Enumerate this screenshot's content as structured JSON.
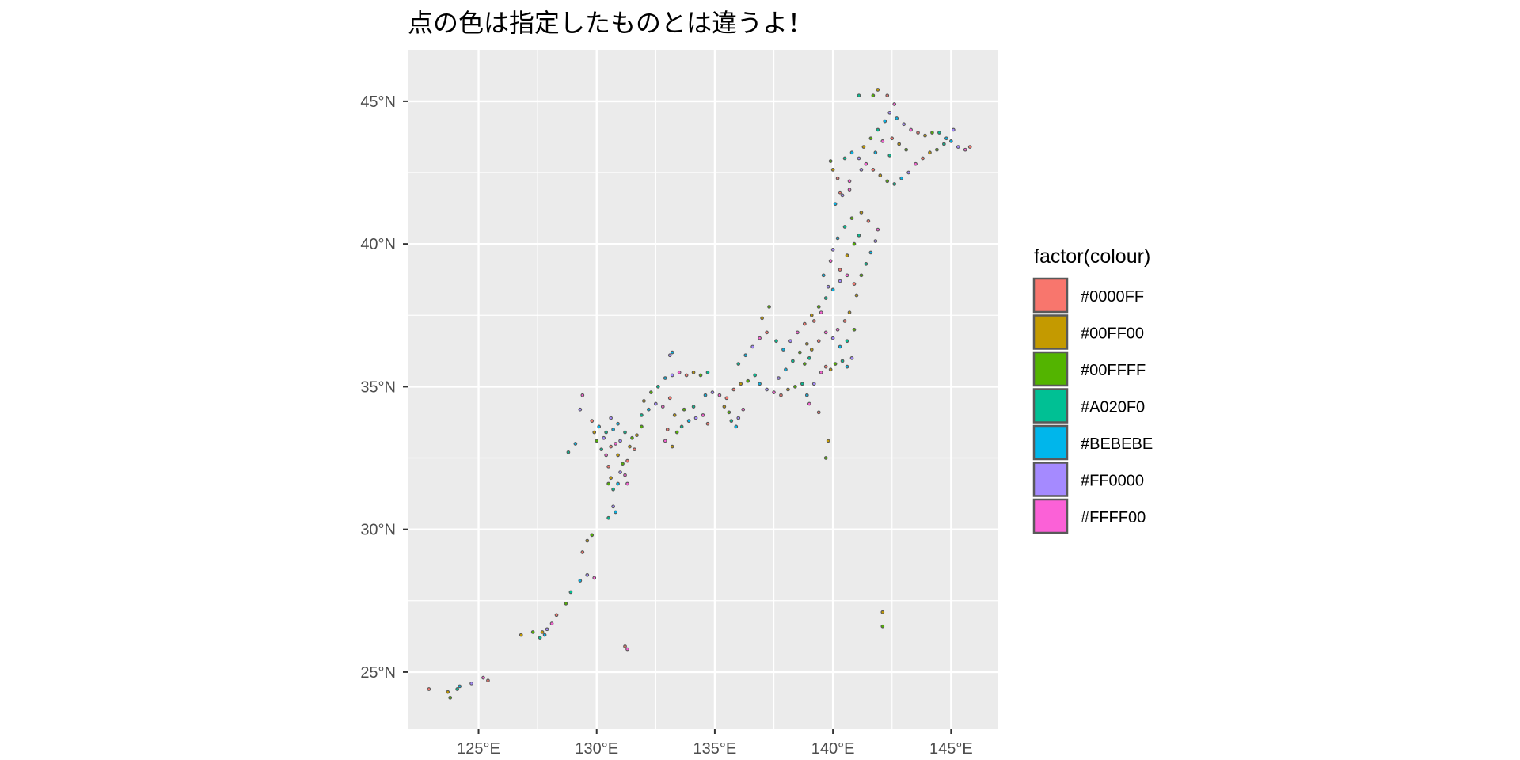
{
  "chart_data": {
    "type": "scatter",
    "title": "点の色は指定したものとは違うよ！",
    "xlabel": "",
    "ylabel": "",
    "xlim": [
      122.0,
      147.0
    ],
    "ylim": [
      23.0,
      46.8
    ],
    "x_ticks": [
      125,
      130,
      135,
      140,
      145
    ],
    "y_ticks": [
      25,
      30,
      35,
      40,
      45
    ],
    "x_tick_labels": [
      "125°E",
      "130°E",
      "135°E",
      "140°E",
      "145°E"
    ],
    "y_tick_labels": [
      "25°N",
      "30°N",
      "35°N",
      "40°N",
      "45°N"
    ],
    "grid": true,
    "panel_background": "#EBEBEB",
    "grid_color": "#FFFFFF",
    "point_outline_color": "#595959",
    "legend": {
      "title": "factor(colour)",
      "placement": "right",
      "entries": [
        {
          "label": "#0000FF",
          "fill": "#F8766D"
        },
        {
          "label": "#00FF00",
          "fill": "#C49A00"
        },
        {
          "label": "#00FFFF",
          "fill": "#53B400"
        },
        {
          "label": "#A020F0",
          "fill": "#00C094"
        },
        {
          "label": "#BEBEBE",
          "fill": "#00B6EB"
        },
        {
          "label": "#FF0000",
          "fill": "#A58AFF"
        },
        {
          "label": "#FFFF00",
          "fill": "#FB61D7"
        }
      ]
    },
    "series": [
      {
        "name": "points",
        "note_fill_palette": "#F8766D,#C49A00,#53B400,#00C094,#00B6EB,#A58AFF,#FB61D7",
        "points": [
          [
            122.9,
            24.4
          ],
          [
            123.7,
            24.3
          ],
          [
            123.8,
            24.1
          ],
          [
            124.1,
            24.4
          ],
          [
            124.2,
            24.5
          ],
          [
            124.7,
            24.6
          ],
          [
            125.2,
            24.8
          ],
          [
            125.4,
            24.7
          ],
          [
            126.8,
            26.3
          ],
          [
            127.3,
            26.4
          ],
          [
            127.6,
            26.2
          ],
          [
            127.8,
            26.3
          ],
          [
            127.9,
            26.5
          ],
          [
            128.1,
            26.7
          ],
          [
            128.3,
            27.0
          ],
          [
            127.7,
            26.4
          ],
          [
            128.7,
            27.4
          ],
          [
            128.9,
            27.8
          ],
          [
            129.3,
            28.2
          ],
          [
            129.6,
            28.4
          ],
          [
            129.9,
            28.3
          ],
          [
            129.4,
            29.2
          ],
          [
            129.6,
            29.6
          ],
          [
            129.8,
            29.8
          ],
          [
            130.5,
            30.4
          ],
          [
            130.8,
            30.6
          ],
          [
            130.7,
            30.8
          ],
          [
            131.3,
            25.8
          ],
          [
            131.2,
            25.9
          ],
          [
            142.1,
            27.1
          ],
          [
            142.1,
            26.6
          ],
          [
            128.8,
            32.7
          ],
          [
            129.1,
            33.0
          ],
          [
            129.3,
            34.2
          ],
          [
            129.4,
            34.7
          ],
          [
            129.8,
            33.8
          ],
          [
            129.9,
            33.4
          ],
          [
            130.0,
            33.1
          ],
          [
            130.2,
            32.8
          ],
          [
            130.1,
            33.6
          ],
          [
            130.3,
            33.2
          ],
          [
            130.4,
            32.6
          ],
          [
            130.5,
            32.2
          ],
          [
            130.6,
            31.8
          ],
          [
            130.5,
            31.6
          ],
          [
            130.7,
            31.4
          ],
          [
            130.9,
            31.6
          ],
          [
            131.0,
            32.0
          ],
          [
            131.2,
            31.9
          ],
          [
            131.3,
            32.4
          ],
          [
            131.4,
            32.9
          ],
          [
            131.5,
            33.2
          ],
          [
            131.2,
            33.4
          ],
          [
            130.9,
            33.7
          ],
          [
            130.6,
            33.9
          ],
          [
            130.8,
            33.0
          ],
          [
            130.6,
            32.9
          ],
          [
            130.9,
            32.6
          ],
          [
            131.1,
            32.3
          ],
          [
            130.4,
            33.4
          ],
          [
            130.7,
            33.5
          ],
          [
            131.0,
            33.1
          ],
          [
            131.3,
            31.6
          ],
          [
            131.6,
            32.8
          ],
          [
            131.7,
            33.3
          ],
          [
            131.9,
            33.6
          ],
          [
            131.9,
            34.0
          ],
          [
            132.2,
            34.2
          ],
          [
            132.5,
            34.4
          ],
          [
            132.8,
            34.3
          ],
          [
            133.1,
            34.6
          ],
          [
            132.0,
            34.5
          ],
          [
            132.3,
            34.8
          ],
          [
            132.6,
            35.0
          ],
          [
            132.9,
            35.3
          ],
          [
            133.2,
            35.4
          ],
          [
            133.5,
            35.5
          ],
          [
            133.8,
            35.4
          ],
          [
            134.1,
            35.5
          ],
          [
            134.4,
            35.4
          ],
          [
            134.7,
            35.5
          ],
          [
            133.2,
            36.2
          ],
          [
            133.1,
            36.1
          ],
          [
            132.9,
            33.1
          ],
          [
            133.0,
            33.5
          ],
          [
            133.2,
            32.9
          ],
          [
            133.4,
            33.4
          ],
          [
            133.6,
            33.6
          ],
          [
            133.9,
            33.8
          ],
          [
            134.2,
            33.9
          ],
          [
            134.5,
            34.0
          ],
          [
            134.7,
            33.7
          ],
          [
            133.3,
            34.0
          ],
          [
            133.7,
            34.2
          ],
          [
            134.1,
            34.3
          ],
          [
            134.6,
            34.7
          ],
          [
            134.9,
            34.8
          ],
          [
            135.2,
            34.7
          ],
          [
            135.5,
            34.6
          ],
          [
            135.4,
            34.3
          ],
          [
            135.6,
            34.1
          ],
          [
            135.7,
            33.8
          ],
          [
            135.9,
            33.6
          ],
          [
            136.0,
            33.9
          ],
          [
            136.2,
            34.2
          ],
          [
            135.8,
            34.9
          ],
          [
            136.1,
            35.1
          ],
          [
            136.4,
            35.2
          ],
          [
            136.7,
            35.4
          ],
          [
            136.9,
            35.1
          ],
          [
            137.2,
            34.9
          ],
          [
            137.5,
            34.8
          ],
          [
            137.8,
            34.7
          ],
          [
            138.1,
            34.9
          ],
          [
            138.4,
            35.0
          ],
          [
            138.7,
            35.1
          ],
          [
            138.9,
            34.7
          ],
          [
            139.2,
            35.1
          ],
          [
            139.5,
            35.5
          ],
          [
            139.7,
            35.7
          ],
          [
            139.9,
            35.6
          ],
          [
            140.1,
            35.8
          ],
          [
            140.4,
            35.9
          ],
          [
            140.6,
            35.7
          ],
          [
            140.8,
            36.0
          ],
          [
            139.0,
            34.4
          ],
          [
            139.4,
            34.1
          ],
          [
            139.8,
            33.1
          ],
          [
            139.7,
            32.5
          ],
          [
            136.0,
            35.8
          ],
          [
            136.3,
            36.1
          ],
          [
            136.6,
            36.4
          ],
          [
            136.9,
            36.7
          ],
          [
            137.2,
            36.9
          ],
          [
            137.0,
            37.4
          ],
          [
            137.3,
            37.8
          ],
          [
            137.6,
            36.6
          ],
          [
            137.9,
            36.3
          ],
          [
            138.2,
            36.6
          ],
          [
            138.5,
            36.9
          ],
          [
            138.8,
            37.2
          ],
          [
            139.1,
            37.5
          ],
          [
            139.4,
            37.8
          ],
          [
            139.7,
            38.1
          ],
          [
            140.0,
            38.4
          ],
          [
            140.3,
            38.7
          ],
          [
            140.6,
            38.9
          ],
          [
            140.9,
            38.6
          ],
          [
            141.0,
            38.2
          ],
          [
            141.2,
            38.9
          ],
          [
            141.4,
            39.3
          ],
          [
            141.6,
            39.7
          ],
          [
            141.8,
            40.1
          ],
          [
            141.9,
            40.5
          ],
          [
            141.5,
            40.8
          ],
          [
            141.2,
            41.1
          ],
          [
            140.8,
            40.9
          ],
          [
            140.5,
            40.6
          ],
          [
            140.2,
            40.2
          ],
          [
            140.0,
            39.8
          ],
          [
            139.9,
            39.4
          ],
          [
            140.3,
            39.1
          ],
          [
            140.6,
            39.6
          ],
          [
            140.9,
            40.0
          ],
          [
            141.1,
            40.3
          ],
          [
            139.6,
            38.9
          ],
          [
            139.8,
            38.5
          ],
          [
            139.5,
            37.6
          ],
          [
            139.2,
            37.3
          ],
          [
            138.9,
            36.5
          ],
          [
            138.6,
            36.2
          ],
          [
            138.3,
            35.9
          ],
          [
            138.0,
            35.6
          ],
          [
            137.7,
            35.3
          ],
          [
            140.2,
            37.0
          ],
          [
            140.5,
            37.3
          ],
          [
            140.7,
            37.6
          ],
          [
            140.9,
            37.0
          ],
          [
            140.6,
            36.6
          ],
          [
            140.3,
            36.4
          ],
          [
            140.0,
            36.7
          ],
          [
            139.7,
            36.9
          ],
          [
            139.4,
            36.6
          ],
          [
            139.1,
            36.3
          ],
          [
            138.8,
            35.8
          ],
          [
            139.0,
            36.0
          ],
          [
            140.1,
            41.4
          ],
          [
            140.4,
            41.7
          ],
          [
            140.7,
            41.9
          ],
          [
            140.2,
            42.3
          ],
          [
            140.0,
            42.6
          ],
          [
            139.9,
            42.9
          ],
          [
            140.5,
            43.0
          ],
          [
            140.8,
            43.2
          ],
          [
            141.1,
            43.0
          ],
          [
            141.4,
            42.8
          ],
          [
            141.7,
            42.6
          ],
          [
            142.0,
            42.4
          ],
          [
            142.3,
            42.2
          ],
          [
            142.6,
            42.1
          ],
          [
            142.9,
            42.3
          ],
          [
            143.2,
            42.5
          ],
          [
            143.5,
            42.8
          ],
          [
            143.8,
            43.0
          ],
          [
            144.1,
            43.2
          ],
          [
            144.4,
            43.3
          ],
          [
            144.7,
            43.5
          ],
          [
            145.0,
            43.6
          ],
          [
            145.3,
            43.4
          ],
          [
            145.6,
            43.3
          ],
          [
            145.8,
            43.4
          ],
          [
            141.3,
            43.4
          ],
          [
            141.6,
            43.7
          ],
          [
            141.9,
            44.0
          ],
          [
            142.2,
            44.3
          ],
          [
            142.4,
            44.6
          ],
          [
            142.6,
            44.9
          ],
          [
            142.3,
            45.2
          ],
          [
            141.9,
            45.4
          ],
          [
            141.7,
            45.2
          ],
          [
            141.1,
            45.2
          ],
          [
            142.7,
            44.4
          ],
          [
            143.0,
            44.2
          ],
          [
            143.3,
            44.0
          ],
          [
            143.6,
            43.9
          ],
          [
            143.9,
            43.8
          ],
          [
            144.2,
            43.9
          ],
          [
            144.5,
            43.9
          ],
          [
            144.8,
            43.7
          ],
          [
            145.1,
            44.0
          ],
          [
            142.1,
            43.6
          ],
          [
            142.5,
            43.7
          ],
          [
            142.8,
            43.5
          ],
          [
            143.1,
            43.3
          ],
          [
            142.4,
            43.1
          ],
          [
            141.8,
            43.2
          ],
          [
            141.2,
            42.6
          ],
          [
            140.7,
            42.2
          ],
          [
            140.3,
            41.8
          ]
        ]
      }
    ]
  }
}
